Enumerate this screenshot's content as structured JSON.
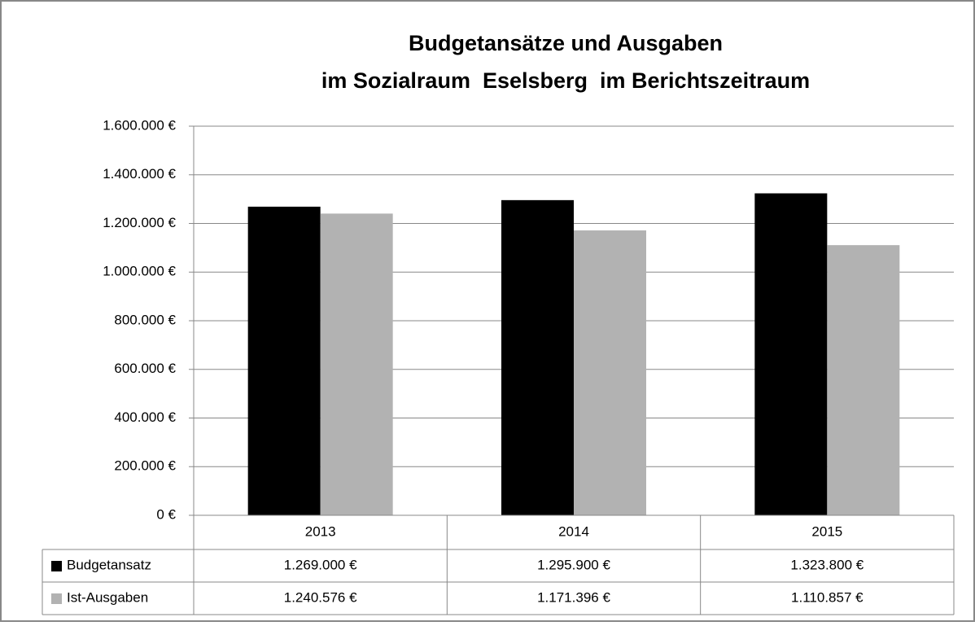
{
  "chart_data": {
    "type": "bar",
    "title": [
      "Budgetansätze und Ausgaben",
      "im Sozialraum  Eselsberg  im Berichtszeitraum"
    ],
    "categories": [
      "2013",
      "2014",
      "2015"
    ],
    "series": [
      {
        "name": "Budgetansatz",
        "color": "#000000",
        "values": [
          1269000,
          1295900,
          1323800
        ],
        "value_labels": [
          "1.269.000 €",
          "1.295.900 €",
          "1.323.800 €"
        ]
      },
      {
        "name": "Ist-Ausgaben",
        "color": "#b2b2b2",
        "values": [
          1240576,
          1171396,
          1110857
        ],
        "value_labels": [
          "1.240.576 €",
          "1.171.396 €",
          "1.110.857 €"
        ]
      }
    ],
    "ylim": [
      0,
      1600000
    ],
    "yticks": [
      {
        "value": 0,
        "label": "0 €"
      },
      {
        "value": 200000,
        "label": "200.000 €"
      },
      {
        "value": 400000,
        "label": "400.000 €"
      },
      {
        "value": 600000,
        "label": "600.000 €"
      },
      {
        "value": 800000,
        "label": "800.000 €"
      },
      {
        "value": 1000000,
        "label": "1.000.000 €"
      },
      {
        "value": 1200000,
        "label": "1.200.000 €"
      },
      {
        "value": 1400000,
        "label": "1.400.000 €"
      },
      {
        "value": 1600000,
        "label": "1.600.000 €"
      }
    ],
    "grid": true
  }
}
